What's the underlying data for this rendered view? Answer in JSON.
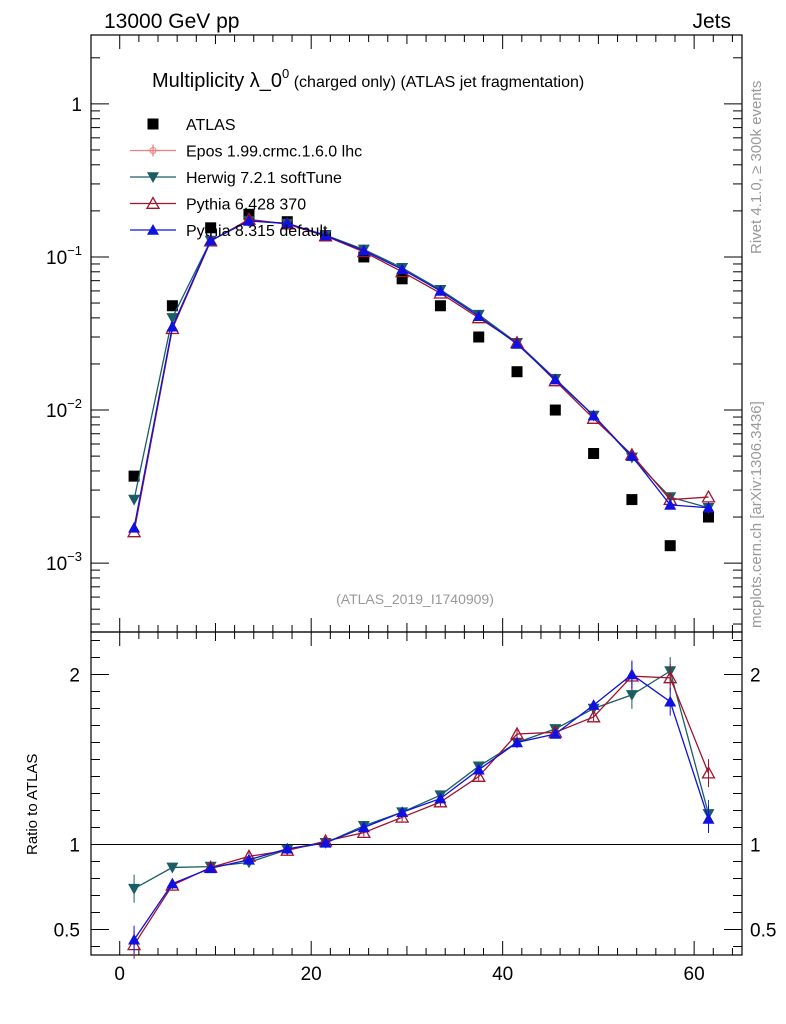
{
  "header": {
    "left": "13000 GeV pp",
    "right": "Jets"
  },
  "side": {
    "rivet": "Rivet 4.1.0, ≥ 300k events",
    "mcplots": "mcplots.cern.ch [arXiv:1306.3436]"
  },
  "watermark": "(ATLAS_2019_I1740909)",
  "chart_data": {
    "type": "scatter",
    "title": "Multiplicity λ_0⁰ (charged only) (ATLAS jet fragmentation)",
    "title_main": "Multiplicity λ_0",
    "title_sup": "0",
    "title_tail": " (charged only) (ATLAS jet fragmentation)",
    "xlim": [
      -3,
      65
    ],
    "main_ylim_log10": [
      -3.45,
      0.45
    ],
    "ratio_ylim": [
      0.35,
      2.25
    ],
    "xticks": [
      "0",
      "20",
      "40",
      "60"
    ],
    "xtick_values": [
      0,
      20,
      40,
      60
    ],
    "yticks_main": [
      {
        "base": "1",
        "exp": "",
        "log": 0
      },
      {
        "base": "10",
        "exp": "−1",
        "log": -1
      },
      {
        "base": "10",
        "exp": "−2",
        "log": -2
      },
      {
        "base": "10",
        "exp": "−3",
        "log": -3
      }
    ],
    "ratio_ylabel": "Ratio to ATLAS",
    "yticks_ratio": [
      "2",
      "1",
      "0.5"
    ],
    "ytick_ratio_values": [
      2,
      1,
      0.5
    ],
    "x": [
      1.5,
      5.5,
      9.5,
      13.5,
      17.5,
      21.5,
      25.5,
      29.5,
      33.5,
      37.5,
      41.5,
      45.5,
      49.5,
      53.5,
      57.5,
      61.5
    ],
    "series": [
      {
        "name": "ATLAS",
        "color": "#000000",
        "marker": "square",
        "values": [
          0.0037,
          0.048,
          0.155,
          0.19,
          0.17,
          0.138,
          0.1,
          0.072,
          0.048,
          0.03,
          0.0178,
          0.01,
          0.0052,
          0.0026,
          0.0013,
          0.002
        ],
        "ratio": [
          1,
          1,
          1,
          1,
          1,
          1,
          1,
          1,
          1,
          1,
          1,
          1,
          1,
          1,
          1,
          1
        ]
      },
      {
        "name": "Epos 1.99.crmc.1.6.0 lhc",
        "color": "#f08080",
        "marker": "cross",
        "values": [],
        "ratio": []
      },
      {
        "name": "Herwig 7.2.1 softTune",
        "color": "#1a5e63",
        "marker": "tri-down",
        "values": [
          0.0026,
          0.04,
          0.128,
          0.172,
          0.165,
          0.139,
          0.112,
          0.085,
          0.061,
          0.042,
          0.0275,
          0.016,
          0.0092,
          0.0049,
          0.0027,
          0.0023
        ],
        "ratio": [
          0.74,
          0.865,
          0.87,
          0.895,
          0.97,
          1.01,
          1.11,
          1.19,
          1.29,
          1.46,
          1.6,
          1.68,
          1.8,
          1.88,
          2.02,
          1.18
        ]
      },
      {
        "name": "Pythia 6.428 370",
        "color": "#a0142d",
        "marker": "tri-up-open",
        "values": [
          0.0016,
          0.034,
          0.127,
          0.176,
          0.164,
          0.137,
          0.108,
          0.08,
          0.058,
          0.04,
          0.0275,
          0.0155,
          0.0088,
          0.0051,
          0.0026,
          0.0027
        ],
        "ratio": [
          0.41,
          0.76,
          0.865,
          0.93,
          0.965,
          1.02,
          1.07,
          1.16,
          1.25,
          1.4,
          1.65,
          1.66,
          1.75,
          1.99,
          1.98,
          1.42
        ]
      },
      {
        "name": "Pythia 8.315 default",
        "color": "#1010e0",
        "marker": "tri-up",
        "values": [
          0.0017,
          0.035,
          0.128,
          0.172,
          0.166,
          0.138,
          0.11,
          0.083,
          0.06,
          0.041,
          0.027,
          0.0158,
          0.0092,
          0.005,
          0.0024,
          0.0023
        ],
        "ratio": [
          0.44,
          0.77,
          0.86,
          0.91,
          0.975,
          1.01,
          1.1,
          1.19,
          1.27,
          1.44,
          1.6,
          1.65,
          1.82,
          2.0,
          1.84,
          1.15
        ]
      }
    ]
  }
}
